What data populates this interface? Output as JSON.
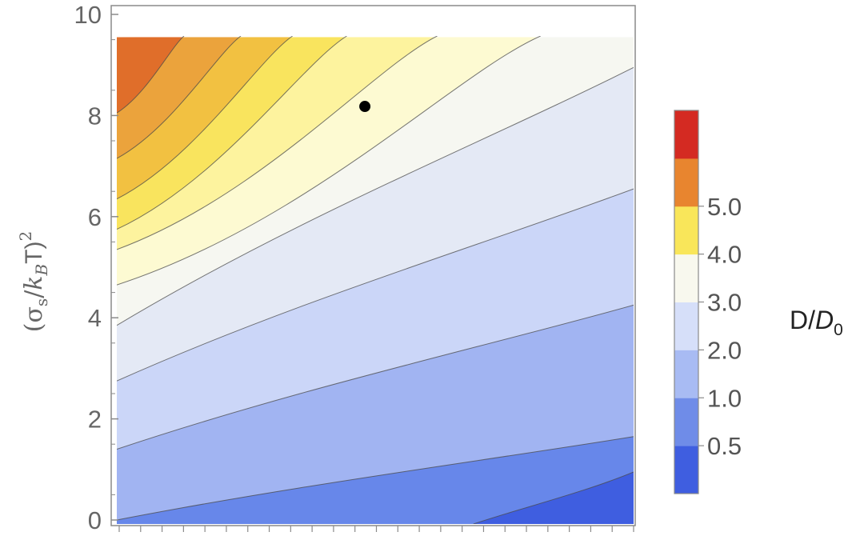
{
  "chart_data": {
    "type": "heatmap",
    "subtype": "filled-contour",
    "title": "",
    "xlabel": "",
    "ylabel": {
      "open": "(σ",
      "sub1": "s",
      "slash": "/",
      "k": "k",
      "sub2": "B",
      "close": "T)",
      "sup": "2"
    },
    "ylim": [
      0,
      10
    ],
    "y_ticks": [
      "0",
      "2",
      "4",
      "6",
      "8",
      "10"
    ],
    "x_minor_tick_count": 24,
    "data_top": 9.55,
    "marker_point": {
      "x_fraction": 0.48,
      "y": 8.18
    },
    "contour_boundaries": [
      {
        "level": 5.0,
        "left_y": 8.05,
        "top_x_fraction": 0.13
      },
      {
        "level": 4.5,
        "left_y": 7.15,
        "top_x_fraction": 0.24
      },
      {
        "level": 4.0,
        "left_y": 6.35,
        "top_x_fraction": 0.34
      },
      {
        "level": 3.5,
        "left_y": 5.75,
        "top_x_fraction": 0.445
      },
      {
        "level": 3.0,
        "left_y": 5.35,
        "top_x_fraction": 0.62
      },
      {
        "level": 2.5,
        "left_y": 4.65,
        "top_x_fraction": 0.82
      },
      {
        "level": 2.0,
        "left_y": 3.85,
        "right_y": 8.95
      },
      {
        "level": 1.5,
        "left_y": 2.75,
        "right_y": 6.55
      },
      {
        "level": 1.0,
        "left_y": 1.4,
        "right_y": 4.25
      },
      {
        "level": 0.5,
        "left_y": 0.0,
        "right_y": 1.65
      },
      {
        "level": 0.25,
        "bottom_x_fraction": 0.69,
        "right_y": 0.95
      }
    ],
    "region_colors": [
      "#3f5ee0",
      "#6787ea",
      "#a1b4f2",
      "#cbd6f8",
      "#e4e9f5",
      "#f6f7f1",
      "#fdfad2",
      "#fdf39e",
      "#f9e45e",
      "#f2c141",
      "#eba33c",
      "#e06e2a",
      "#d42a22"
    ],
    "colorbar": {
      "title_main": "D/",
      "title_italic": "D",
      "title_sub": "0",
      "labels": [
        "0.5",
        "1.0",
        "2.0",
        "3.0",
        "4.0",
        "5.0"
      ],
      "bands": [
        {
          "color": "#3f5ee0"
        },
        {
          "color": "#6f8ce8"
        },
        {
          "color": "#a8bbf3"
        },
        {
          "color": "#d6dff9"
        },
        {
          "color": "#f8f8ee"
        },
        {
          "color": "#f9e65a"
        },
        {
          "color": "#e8852f"
        },
        {
          "color": "#d42a22"
        }
      ]
    }
  }
}
